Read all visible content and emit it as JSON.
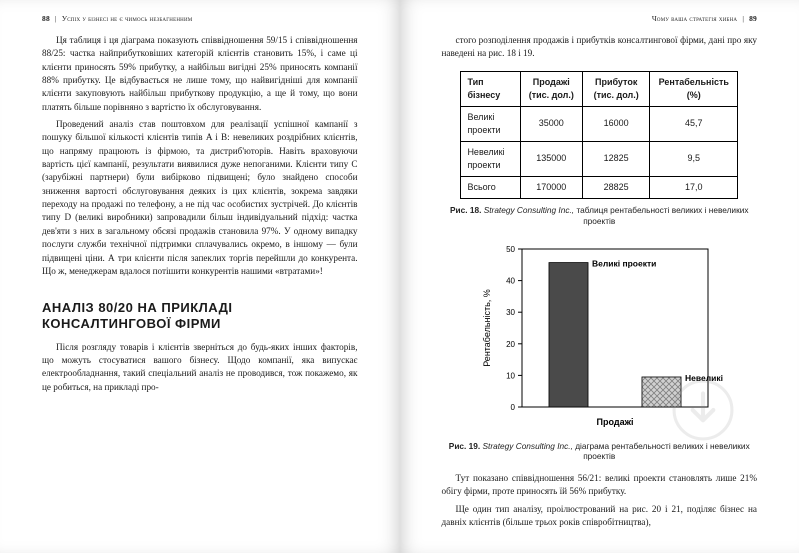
{
  "left": {
    "page_number": "88",
    "running_head": "Успіх у бізнесі не є чимось незбагненним",
    "para1": "Ця таблиця і ця діаграма показують співвідношення 59/15 і співвідношення 88/25: частка найприбутковіших категорій клієнтів становить 15%, і саме ці клієнти приносять 59% прибутку, а найбільш вигідні 25% приносять компанії 88% прибутку. Це відбувається не лише тому, що найвигідніші для компанії клієнти закуповують найбільш прибуткову продукцію, а ще й тому, що вони платять більше порівняно з вартістю їх обслуговування.",
    "para2": "Проведений аналіз став поштовхом для реалізації успішної кампанії з пошуку більшої кількості клієнтів типів A і B: невеликих роздрібних клієнтів, що напряму працюють із фірмою, та дистриб'юторів. Навіть враховуючи вартість цієї кампанії, результати виявилися дуже непоганими. Клієнти типу C (зарубіжні партнери) були вибірково підвищені; було знайдено способи зниження вартості обслуговування деяких із цих клієнтів, зокрема завдяки переходу на продажі по телефону, а не під час особистих зустрічей. До клієнтів типу D (великі виробники) запровадили більш індивідуальний підхід: частка дев'яти з них в загальному обсязі продажів становила 97%. У одному випадку послуги служби технічної підтримки сплачувались окремо, в іншому — були підвищені ціни. А три клієнти після запеклих торгів перейшли до конкурента. Що ж, менеджерам вдалося потішити конкурентів нашими «втратами»!",
    "heading": "АНАЛІЗ 80/20 НА ПРИКЛАДІ КОНСАЛТИНГОВОЇ ФІРМИ",
    "para3": "Після розгляду товарів і клієнтів зверніться до будь-яких інших факторів, що можуть стосуватися вашого бізнесу. Щодо компанії, яка випускає електрообладнання, такий спеціальний аналіз не проводився, тож покажемо, як це робиться, на прикладі про-"
  },
  "right": {
    "page_number": "89",
    "running_head": "Чому ваша стратегія хибна",
    "intro": "стого розподілення продажів і прибутків консалтингової фірми, дані про яку наведені на рис. 18 і 19.",
    "table": {
      "headers": [
        "Тип бізнесу",
        "Продажі (тис. дол.)",
        "Прибуток (тис. дол.)",
        "Рентабельність (%)"
      ],
      "rows": [
        [
          "Великі проекти",
          "35000",
          "16000",
          "45,7"
        ],
        [
          "Невеликі проекти",
          "135000",
          "12825",
          "9,5"
        ],
        [
          "Всього",
          "170000",
          "28825",
          "17,0"
        ]
      ]
    },
    "caption18_lead": "Рис. 18.",
    "caption18_ital": "Strategy Consulting Inc.,",
    "caption18_rest": " таблиця рентабельності великих і невеликих проектів",
    "chart": {
      "type": "bar",
      "categories": [
        "Великі проекти",
        "Невеликі проекти"
      ],
      "values": [
        45.7,
        9.5
      ],
      "ylim": [
        0,
        50
      ],
      "ytick_step": 10,
      "yticks": [
        0,
        10,
        20,
        30,
        40,
        50
      ],
      "bar_colors": [
        "#4a4a4a",
        "#bfbfbf"
      ],
      "pattern": [
        "solid",
        "crosshatch"
      ],
      "ylabel": "Рентабельність, %",
      "xlabel": "Продажі",
      "label_fontsize": 9,
      "tick_fontsize": 8,
      "background_color": "#ffffff",
      "grid_color": "#000000",
      "bar_width": 0.42,
      "axis_color": "#000000"
    },
    "caption19_lead": "Рис. 19.",
    "caption19_ital": "Strategy Consulting Inc.,",
    "caption19_rest": " діаграма рентабельності великих і невеликих проектів",
    "outro1": "Тут показано співвідношення 56/21: великі проекти становлять лише 21% обігу фірми, проте приносять їй 56% прибутку.",
    "outro2": "Ще один тип аналізу, проілюстрований на рис. 20 і 21, поділяє бізнес на давніх клієнтів (більше трьох років співробітництва),"
  }
}
